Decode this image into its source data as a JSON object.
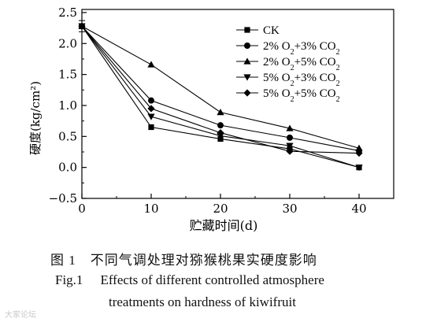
{
  "chart_data": {
    "type": "line",
    "xlabel": "贮藏时间(d)",
    "ylabel": "硬度(kg/cm²)",
    "x": [
      0,
      10,
      20,
      30,
      40
    ],
    "xticks": [
      "0",
      "10",
      "20",
      "30",
      "40"
    ],
    "yticks": [
      "−0.5",
      "0.0",
      "0.5",
      "1.0",
      "1.5",
      "2.0",
      "2.5"
    ],
    "xlim": [
      0,
      45
    ],
    "ylim": [
      -0.5,
      2.55
    ],
    "grid": false,
    "legend_position": "top-right",
    "error_bar_at_x0": 0.09,
    "series": [
      {
        "name": "CK",
        "legend": {
          "pre": "CK",
          "sub1": "",
          "mid": "",
          "sub2": "",
          "post": ""
        },
        "marker": "square",
        "values": [
          2.28,
          0.65,
          0.46,
          0.3,
          0.0
        ]
      },
      {
        "name": "2% O2+3% CO2",
        "legend": {
          "pre": "2% O",
          "sub1": "2",
          "mid": "+3% CO",
          "sub2": "2",
          "post": ""
        },
        "marker": "circle",
        "values": [
          2.28,
          1.08,
          0.68,
          0.48,
          0.27
        ]
      },
      {
        "name": "2% O2+5% CO2",
        "legend": {
          "pre": "2% O",
          "sub1": "2",
          "mid": "+5% CO",
          "sub2": "2",
          "post": ""
        },
        "marker": "triangle-up",
        "values": [
          2.28,
          1.66,
          0.89,
          0.63,
          0.31
        ]
      },
      {
        "name": "5% O2+3% CO2",
        "legend": {
          "pre": "5% O",
          "sub1": "2",
          "mid": "+3% CO",
          "sub2": "2",
          "post": ""
        },
        "marker": "triangle-down",
        "values": [
          2.28,
          0.82,
          0.51,
          0.35,
          0.0
        ]
      },
      {
        "name": "5% O2+5% CO2",
        "legend": {
          "pre": "5% O",
          "sub1": "2",
          "mid": "+5% CO",
          "sub2": "2",
          "post": ""
        },
        "marker": "diamond",
        "values": [
          2.28,
          0.95,
          0.56,
          0.26,
          0.23
        ]
      }
    ]
  },
  "caption": {
    "cn_num": "图 1",
    "cn_text": "不同气调处理对猕猴桃果实硬度影响",
    "en_num": "Fig.1",
    "en_line1": "Effects of different controlled atmosphere",
    "en_line2": "treatments on hardness of kiwifruit"
  },
  "watermark": "大家论坛"
}
